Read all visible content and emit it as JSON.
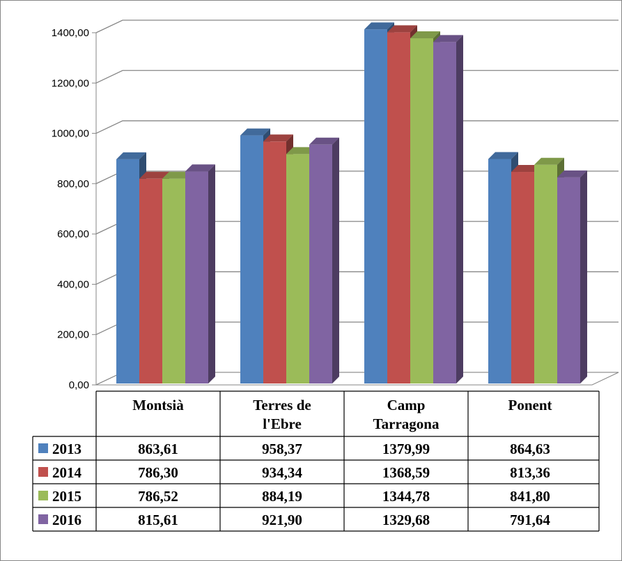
{
  "chart_data": {
    "type": "bar",
    "title": "",
    "xlabel": "",
    "ylabel": "",
    "categories": [
      "Montsià",
      "Terres de l'Ebre",
      "Camp Tarragona",
      "Ponent"
    ],
    "category_lines": [
      [
        "Montsià"
      ],
      [
        "Terres de",
        "l'Ebre"
      ],
      [
        "Camp",
        "Tarragona"
      ],
      [
        "Ponent"
      ]
    ],
    "series": [
      {
        "name": "2013",
        "color": "#4F81BD",
        "values": [
          863.61,
          958.37,
          1379.99,
          864.63
        ],
        "labels": [
          "863,61",
          "958,37",
          "1379,99",
          "864,63"
        ]
      },
      {
        "name": "2014",
        "color": "#C0504D",
        "values": [
          786.3,
          934.34,
          1368.59,
          813.36
        ],
        "labels": [
          "786,30",
          "934,34",
          "1368,59",
          "813,36"
        ]
      },
      {
        "name": "2015",
        "color": "#9BBB59",
        "values": [
          786.52,
          884.19,
          1344.78,
          841.8
        ],
        "labels": [
          "786,52",
          "884,19",
          "1344,78",
          "841,80"
        ]
      },
      {
        "name": "2016",
        "color": "#8064A2",
        "values": [
          815.61,
          921.9,
          1329.68,
          791.64
        ],
        "labels": [
          "815,61",
          "921,90",
          "1329,68",
          "791,64"
        ]
      }
    ],
    "ylim": [
      0,
      1400
    ],
    "yticks": [
      0,
      200,
      400,
      600,
      800,
      1000,
      1200,
      1400
    ],
    "ytick_labels": [
      "0,00",
      "200,00",
      "400,00",
      "600,00",
      "800,00",
      "1000,00",
      "1200,00",
      "1400,00"
    ],
    "grid": true,
    "three_d": true,
    "legend": "data-table"
  }
}
